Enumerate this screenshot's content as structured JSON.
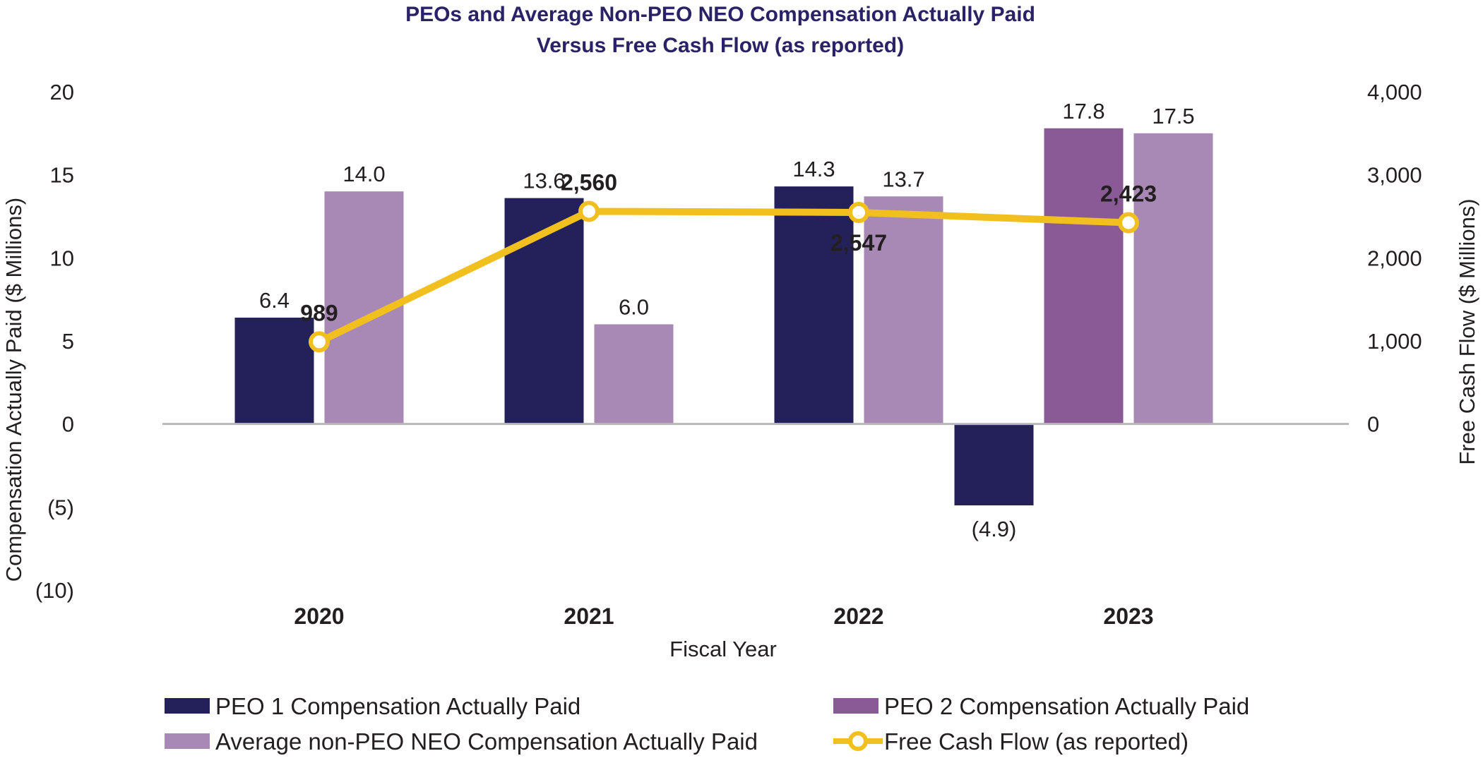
{
  "chart_data": {
    "type": "bar",
    "title_line1": "PEOs and Average Non-PEO NEO Compensation Actually Paid",
    "title_line2": "Versus Free Cash Flow (as reported)",
    "xlabel": "Fiscal Year",
    "ylabel": "Compensation Actually Paid ($ Millions)",
    "y2label": "Free Cash Flow ($ Millions)",
    "ylim": [
      -10,
      20
    ],
    "y2lim": [
      -2000,
      4000
    ],
    "yticks": [
      {
        "v": 20,
        "label": "20"
      },
      {
        "v": 15,
        "label": "15"
      },
      {
        "v": 10,
        "label": "10"
      },
      {
        "v": 5,
        "label": "5"
      },
      {
        "v": 0,
        "label": "0"
      },
      {
        "v": -5,
        "label": "(5)"
      },
      {
        "v": -10,
        "label": "(10)"
      }
    ],
    "y2ticks": [
      {
        "v": 4000,
        "label": "4,000"
      },
      {
        "v": 3000,
        "label": "3,000"
      },
      {
        "v": 2000,
        "label": "2,000"
      },
      {
        "v": 1000,
        "label": "1,000"
      },
      {
        "v": 0,
        "label": "0"
      }
    ],
    "categories": [
      "2020",
      "2021",
      "2022",
      "2023"
    ],
    "bars": [
      {
        "cat": 0,
        "slot": 0,
        "series": "peo1",
        "value": 6.4,
        "label": "6.4"
      },
      {
        "cat": 0,
        "slot": 1,
        "series": "neo",
        "value": 14.0,
        "label": "14.0"
      },
      {
        "cat": 1,
        "slot": 0,
        "series": "peo1",
        "value": 13.6,
        "label": "13.6"
      },
      {
        "cat": 1,
        "slot": 1,
        "series": "neo",
        "value": 6.0,
        "label": "6.0"
      },
      {
        "cat": 2,
        "slot": 0,
        "series": "peo1",
        "value": 14.3,
        "label": "14.3"
      },
      {
        "cat": 2,
        "slot": 1,
        "series": "neo",
        "value": 13.7,
        "label": "13.7"
      },
      {
        "cat": 3,
        "slot": -1,
        "series": "peo1",
        "value": -4.9,
        "label": "(4.9)"
      },
      {
        "cat": 3,
        "slot": 0,
        "series": "peo2",
        "value": 17.8,
        "label": "17.8"
      },
      {
        "cat": 3,
        "slot": 1,
        "series": "neo",
        "value": 17.5,
        "label": "17.5"
      }
    ],
    "fcf": [
      {
        "cat": 0,
        "value": 989,
        "label": "989",
        "label_pos": "above"
      },
      {
        "cat": 1,
        "value": 2560,
        "label": "2,560",
        "label_pos": "above"
      },
      {
        "cat": 2,
        "value": 2547,
        "label": "2,547",
        "label_pos": "below"
      },
      {
        "cat": 3,
        "value": 2423,
        "label": "2,423",
        "label_pos": "above"
      }
    ],
    "series": [
      {
        "key": "peo1",
        "name": "PEO 1 Compensation Actually Paid",
        "color": "#24215a"
      },
      {
        "key": "peo2",
        "name": "PEO 2 Compensation Actually Paid",
        "color": "#8a5a96"
      },
      {
        "key": "neo",
        "name": "Average non-PEO NEO Compensation Actually Paid",
        "color": "#a888b5"
      },
      {
        "key": "fcf",
        "name": "Free Cash Flow (as reported)",
        "color": "#f2c01e"
      }
    ]
  }
}
